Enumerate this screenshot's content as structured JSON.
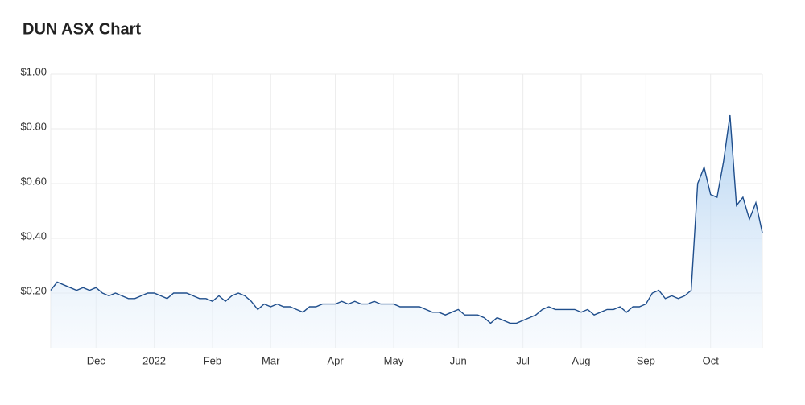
{
  "chart_data": {
    "type": "area-line",
    "title": "DUN ASX Chart",
    "categories": [
      null,
      null,
      null,
      null,
      null,
      null,
      null,
      "Dec",
      null,
      null,
      null,
      null,
      null,
      null,
      null,
      null,
      "2022",
      null,
      null,
      null,
      null,
      null,
      null,
      null,
      null,
      "Feb",
      null,
      null,
      null,
      null,
      null,
      null,
      null,
      null,
      "Mar",
      null,
      null,
      null,
      null,
      null,
      null,
      null,
      null,
      null,
      "Apr",
      null,
      null,
      null,
      null,
      null,
      null,
      null,
      null,
      "May",
      null,
      null,
      null,
      null,
      null,
      null,
      null,
      null,
      null,
      "Jun",
      null,
      null,
      null,
      null,
      null,
      null,
      null,
      null,
      null,
      "Jul",
      null,
      null,
      null,
      null,
      null,
      null,
      null,
      null,
      "Aug",
      null,
      null,
      null,
      null,
      null,
      null,
      null,
      null,
      null,
      "Sep",
      null,
      null,
      null,
      null,
      null,
      null,
      null,
      null,
      null,
      "Oct",
      null,
      null,
      null,
      null,
      null,
      null,
      null,
      null
    ],
    "values": [
      0.21,
      0.24,
      0.23,
      0.22,
      0.21,
      0.22,
      0.21,
      0.22,
      0.2,
      0.19,
      0.2,
      0.19,
      0.18,
      0.18,
      0.19,
      0.2,
      0.2,
      0.19,
      0.18,
      0.2,
      0.2,
      0.2,
      0.19,
      0.18,
      0.18,
      0.17,
      0.19,
      0.17,
      0.19,
      0.2,
      0.19,
      0.17,
      0.14,
      0.16,
      0.15,
      0.16,
      0.15,
      0.15,
      0.14,
      0.13,
      0.15,
      0.15,
      0.16,
      0.16,
      0.16,
      0.17,
      0.16,
      0.17,
      0.16,
      0.16,
      0.17,
      0.16,
      0.16,
      0.16,
      0.15,
      0.15,
      0.15,
      0.15,
      0.14,
      0.13,
      0.13,
      0.12,
      0.13,
      0.14,
      0.12,
      0.12,
      0.12,
      0.11,
      0.09,
      0.11,
      0.1,
      0.09,
      0.09,
      0.1,
      0.11,
      0.12,
      0.14,
      0.15,
      0.14,
      0.14,
      0.14,
      0.14,
      0.13,
      0.14,
      0.12,
      0.13,
      0.14,
      0.14,
      0.15,
      0.13,
      0.15,
      0.15,
      0.16,
      0.2,
      0.21,
      0.18,
      0.19,
      0.18,
      0.19,
      0.21,
      0.6,
      0.66,
      0.56,
      0.55,
      0.68,
      0.85,
      0.52,
      0.55,
      0.47,
      0.53,
      0.42
    ],
    "color": "#1f4e8c",
    "ylim": [
      0,
      1.0
    ],
    "yticks": [
      {
        "value": 0.2,
        "label": "$0.20"
      },
      {
        "value": 0.4,
        "label": "$0.40"
      },
      {
        "value": 0.6,
        "label": "$0.60"
      },
      {
        "value": 0.8,
        "label": "$0.80"
      },
      {
        "value": 1.0,
        "label": "$1.00"
      }
    ],
    "grid": true
  }
}
